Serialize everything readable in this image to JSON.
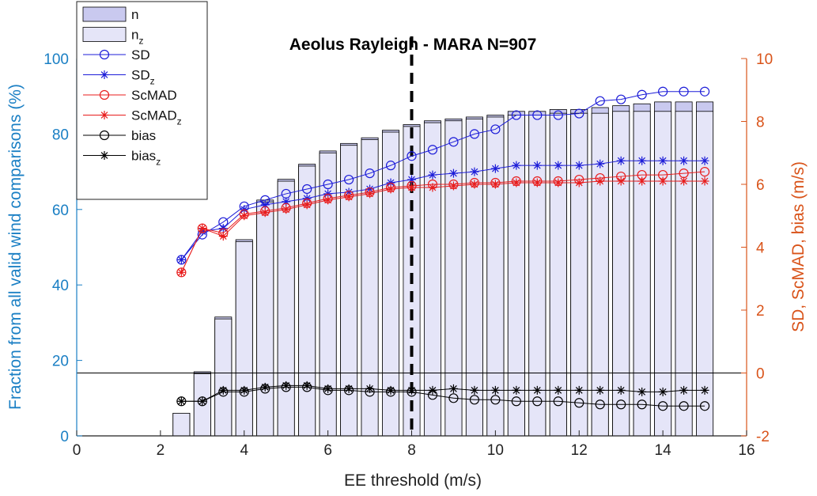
{
  "chart_data": {
    "type": "bar",
    "title": "Aeolus Rayleigh - MARA N=907",
    "xlabel": "EE threshold (m/s)",
    "ylabel_left": "Fraction from all valid wind comparisons (%)",
    "ylabel_right": "SD, ScMAD, bias (m/s)",
    "xlim": [
      0,
      16
    ],
    "ylim_left": [
      0,
      100
    ],
    "ylim_right": [
      -2,
      10
    ],
    "xticks": [
      "0",
      "2",
      "4",
      "6",
      "8",
      "10",
      "12",
      "14",
      "16"
    ],
    "yticks_left": [
      "0",
      "20",
      "40",
      "60",
      "80",
      "100"
    ],
    "yticks_right": [
      "-2",
      "0",
      "2",
      "4",
      "6",
      "8",
      "10"
    ],
    "threshold_line_x": 8,
    "colors": {
      "left_axis": "#1a7fc4",
      "right_axis": "#d95319",
      "bar_n": "#c9c9ef",
      "bar_nz": "#e5e5f8",
      "sd": "#1c1cd8",
      "scmad": "#e81c1c",
      "bias": "#000000"
    },
    "x": [
      2.5,
      3,
      3.5,
      4,
      4.5,
      5,
      5.5,
      6,
      6.5,
      7,
      7.5,
      8,
      8.5,
      9,
      9.5,
      10,
      10.5,
      11,
      11.5,
      12,
      12.5,
      13,
      13.5,
      14,
      14.5,
      15
    ],
    "series": [
      {
        "name": "n",
        "kind": "bar",
        "values": [
          6,
          17,
          31.5,
          52,
          62.5,
          68,
          72,
          75.5,
          77.5,
          79,
          81,
          82.5,
          83.5,
          84,
          84.5,
          85,
          86,
          86,
          86.5,
          86.5,
          87,
          87.5,
          88,
          88.5,
          88.5,
          88.5
        ]
      },
      {
        "name": "n",
        "sub": "z",
        "kind": "bar",
        "values": [
          6,
          16.5,
          31,
          51.5,
          62,
          67.5,
          71.5,
          75,
          77,
          78.5,
          80.5,
          82,
          83,
          83.5,
          84,
          84.5,
          85,
          85,
          85.5,
          85.5,
          85.5,
          86,
          86,
          86,
          86,
          86
        ]
      },
      {
        "name": "SD",
        "kind": "line",
        "marker": "circle",
        "values": [
          3.6,
          4.4,
          4.8,
          5.3,
          5.5,
          5.7,
          5.85,
          6.0,
          6.15,
          6.35,
          6.6,
          6.9,
          7.1,
          7.35,
          7.6,
          7.75,
          8.2,
          8.2,
          8.2,
          8.25,
          8.65,
          8.7,
          8.85,
          8.95,
          8.95,
          8.95
        ]
      },
      {
        "name": "SD",
        "sub": "z",
        "kind": "line",
        "marker": "star",
        "values": [
          3.6,
          4.5,
          4.6,
          5.2,
          5.35,
          5.45,
          5.55,
          5.7,
          5.75,
          5.85,
          6.05,
          6.15,
          6.3,
          6.35,
          6.4,
          6.5,
          6.6,
          6.6,
          6.6,
          6.6,
          6.65,
          6.75,
          6.75,
          6.75,
          6.75,
          6.75
        ]
      },
      {
        "name": "ScMAD",
        "kind": "line",
        "marker": "circle",
        "values": [
          3.2,
          4.6,
          4.45,
          5.05,
          5.15,
          5.25,
          5.4,
          5.55,
          5.65,
          5.75,
          5.9,
          5.95,
          6.0,
          6.0,
          6.05,
          6.05,
          6.1,
          6.1,
          6.1,
          6.15,
          6.2,
          6.25,
          6.3,
          6.3,
          6.35,
          6.4
        ]
      },
      {
        "name": "ScMAD",
        "sub": "z",
        "kind": "line",
        "marker": "star",
        "values": [
          3.2,
          4.6,
          4.35,
          5.0,
          5.1,
          5.2,
          5.35,
          5.5,
          5.6,
          5.7,
          5.85,
          5.9,
          5.9,
          5.95,
          6.0,
          6.0,
          6.05,
          6.05,
          6.05,
          6.05,
          6.1,
          6.1,
          6.1,
          6.1,
          6.1,
          6.1
        ]
      },
      {
        "name": "bias",
        "kind": "line",
        "marker": "circle",
        "values": [
          -0.9,
          -0.9,
          -0.6,
          -0.6,
          -0.5,
          -0.45,
          -0.45,
          -0.55,
          -0.55,
          -0.6,
          -0.6,
          -0.6,
          -0.7,
          -0.8,
          -0.85,
          -0.85,
          -0.9,
          -0.9,
          -0.9,
          -0.95,
          -1.0,
          -1.0,
          -1.0,
          -1.05,
          -1.05,
          -1.05
        ]
      },
      {
        "name": "bias",
        "sub": "z",
        "kind": "line",
        "marker": "star",
        "values": [
          -0.9,
          -0.9,
          -0.55,
          -0.55,
          -0.45,
          -0.4,
          -0.4,
          -0.5,
          -0.5,
          -0.5,
          -0.55,
          -0.55,
          -0.55,
          -0.5,
          -0.55,
          -0.55,
          -0.55,
          -0.55,
          -0.55,
          -0.55,
          -0.55,
          -0.55,
          -0.6,
          -0.6,
          -0.55,
          -0.55
        ]
      }
    ],
    "legend_position": "top-left"
  }
}
